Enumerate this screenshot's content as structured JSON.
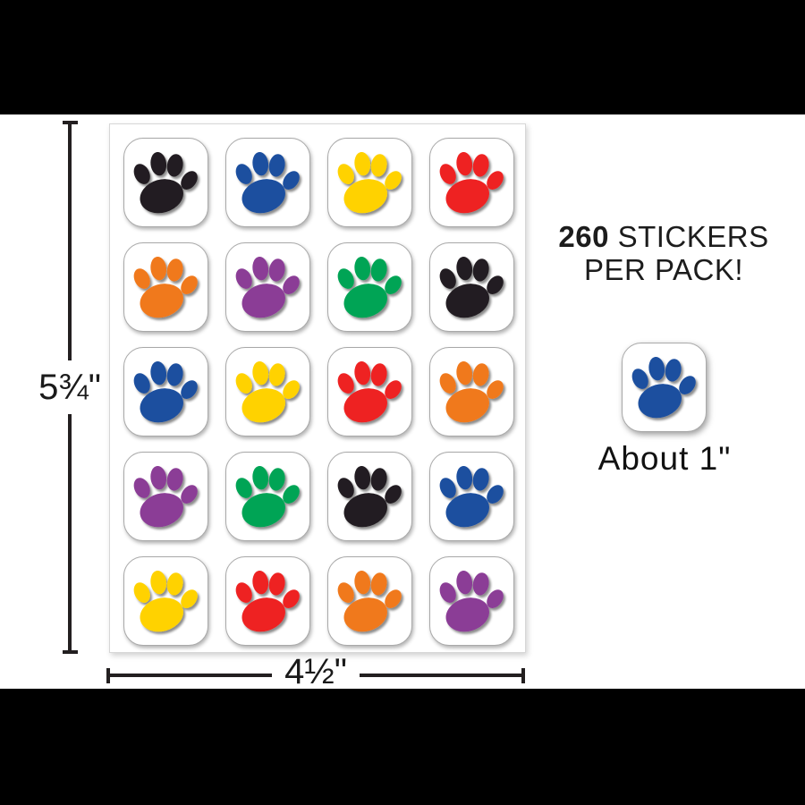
{
  "promo": {
    "count": "260",
    "after_count": " STICKERS",
    "line2": "PER PACK!"
  },
  "dimension_labels": {
    "sheet_height": "5¾\"",
    "sheet_width": "4½\""
  },
  "sample_sticker": {
    "caption": "About 1\"",
    "color": "blue"
  },
  "palette": {
    "black": "#231f20",
    "blue": "#1d4f9f",
    "yellow": "#ffd200",
    "red": "#ee2324",
    "orange": "#f0791e",
    "purple": "#8b3d96",
    "green": "#00a455"
  },
  "sheet": {
    "rows": 5,
    "cols": 4,
    "sticker_colors": [
      [
        "black",
        "blue",
        "yellow",
        "red"
      ],
      [
        "orange",
        "purple",
        "green",
        "black"
      ],
      [
        "blue",
        "yellow",
        "red",
        "orange"
      ],
      [
        "purple",
        "green",
        "black",
        "blue"
      ],
      [
        "yellow",
        "red",
        "orange",
        "purple"
      ]
    ]
  }
}
